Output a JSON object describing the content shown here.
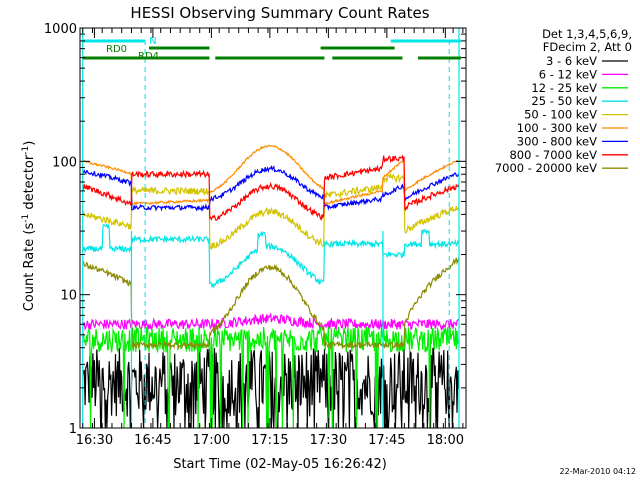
{
  "footer_date": "22-Mar-2010 04:12",
  "chart_data": {
    "type": "line",
    "title": "HESSI Observing Summary Count Rates",
    "xlabel": "Start Time (02-May-05 16:26:42)",
    "ylabel_main": "Count Rate (s",
    "ylabel_sup1": "-1",
    "ylabel_mid": " detector",
    "ylabel_sup2": "-1",
    "ylabel_end": ")",
    "ylog": true,
    "ylim": [
      1,
      1000
    ],
    "xlim_minutes": [
      16.3,
      95.0
    ],
    "xticks": [
      {
        "label": "16:30",
        "min": 30
      },
      {
        "label": "16:45",
        "min": 45
      },
      {
        "label": "17:00",
        "min": 60
      },
      {
        "label": "17:15",
        "min": 75
      },
      {
        "label": "17:30",
        "min": 90
      },
      {
        "label": "17:45",
        "min": 105
      },
      {
        "label": "18:00",
        "min": 120
      }
    ],
    "yticks": [
      {
        "label": "1",
        "value": 1
      },
      {
        "label": "10",
        "value": 10
      },
      {
        "label": "100",
        "value": 100
      },
      {
        "label": "1000",
        "value": 1000
      }
    ],
    "legend_header": [
      "Det 1,3,4,5,6,9,",
      "FDecim 2, Att 0"
    ],
    "series": [
      {
        "name": "3 - 6 keV",
        "color": "#000000",
        "kind": "noisy-low"
      },
      {
        "name": "6 - 12 keV",
        "color": "#ff00ff",
        "kind": "mid-flat"
      },
      {
        "name": "12 - 25 keV",
        "color": "#00ee00",
        "kind": "mid-noisy"
      },
      {
        "name": "25 - 50 keV",
        "color": "#00e5e5",
        "kind": "cyan"
      },
      {
        "name": "50 - 100 keV",
        "color": "#d4c400",
        "kind": "yellow"
      },
      {
        "name": "100 - 300 keV",
        "color": "#ff8c00",
        "kind": "orange"
      },
      {
        "name": "300 - 800 keV",
        "color": "#0000ff",
        "kind": "blue"
      },
      {
        "name": "800 - 7000 keV",
        "color": "#ff0000",
        "kind": "red"
      },
      {
        "name": "7000 - 20000 keV",
        "color": "#8b8b00",
        "kind": "olive"
      }
    ],
    "day_night": {
      "color": "#00e5e5",
      "label": "N",
      "bars_minutes": [
        [
          27,
          43
        ],
        [
          106,
          124
        ]
      ]
    },
    "flags": [
      {
        "label": "RD0",
        "color": "#008000",
        "bars_minutes": [
          [
            44,
            59.5
          ],
          [
            88,
            107
          ]
        ]
      },
      {
        "label": "RD4",
        "color": "#008000",
        "bars_minutes": [
          [
            27,
            59.5
          ],
          [
            61,
            89
          ],
          [
            91,
            109
          ],
          [
            113,
            124
          ]
        ]
      }
    ],
    "saa_lines_minutes": [
      27,
      123.5
    ],
    "dashed_lines_minutes": [
      43,
      121
    ],
    "solid_cyan_lines_minutes": [
      39.5,
      104
    ]
  }
}
